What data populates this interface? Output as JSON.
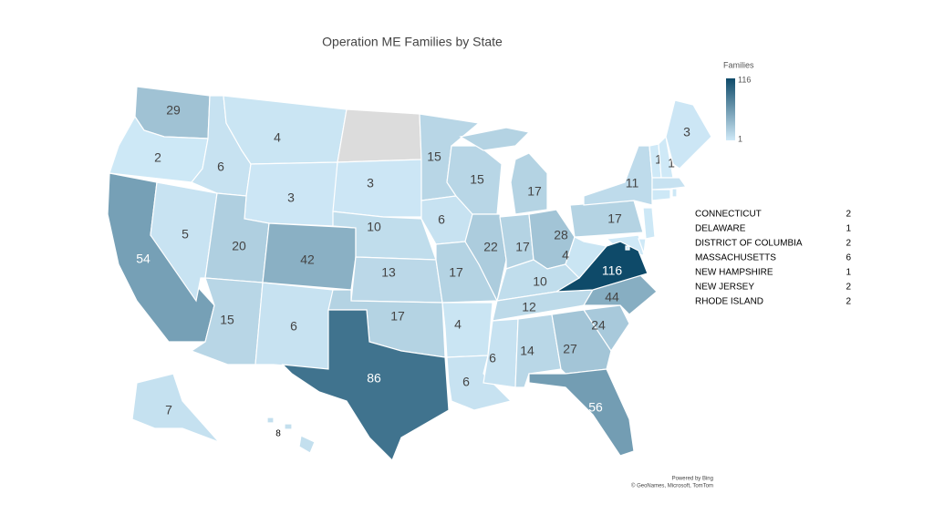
{
  "title": "Operation ME Families by State",
  "legend": {
    "title": "Families",
    "max": 116,
    "min": 1,
    "color_min": "#cfe9f7",
    "color_max": "#0e4a69",
    "null_color": "#dcdcdc"
  },
  "map": {
    "values": [
      29,
      2,
      54,
      5,
      6,
      4,
      3,
      20,
      42,
      15,
      6,
      null,
      3,
      10,
      13,
      17,
      86,
      15,
      6,
      17,
      4,
      6,
      15,
      22,
      17,
      17,
      28,
      10,
      12,
      6,
      14,
      27,
      56,
      24,
      44,
      116,
      4,
      17,
      11,
      1,
      1,
      3,
      7,
      8
    ]
  },
  "table": {
    "rows": [
      [
        "CONNECTICUT",
        2
      ],
      [
        "DELAWARE",
        1
      ],
      [
        "DISTRICT OF COLUMBIA",
        2
      ],
      [
        "MASSACHUSETTS",
        6
      ],
      [
        "NEW HAMPSHIRE",
        1
      ],
      [
        "NEW JERSEY",
        2
      ],
      [
        "RHODE ISLAND",
        2
      ]
    ]
  },
  "attribution": [
    "Powered by Bing",
    "© GeoNames, Microsoft, TomTom"
  ]
}
